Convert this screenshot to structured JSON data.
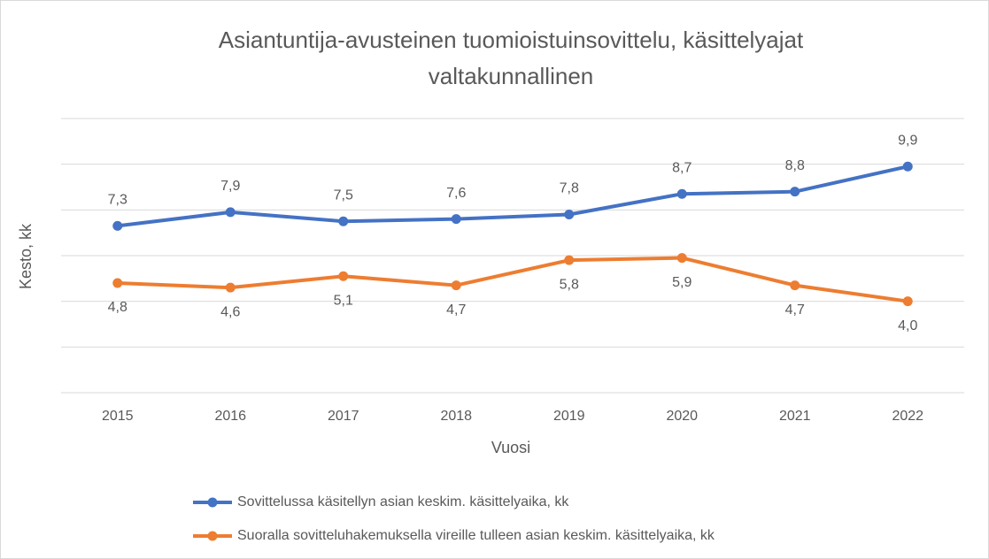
{
  "chart_data": {
    "type": "line",
    "title": [
      "Asiantuntija-avusteinen tuomioistuinsovittelu, käsittelyajat",
      "valtakunnallinen"
    ],
    "x_label": "Vuosi",
    "y_label": "Kesto, kk",
    "categories": [
      "2015",
      "2016",
      "2017",
      "2018",
      "2019",
      "2020",
      "2021",
      "2022"
    ],
    "series": [
      {
        "name": "Sovittelussa käsitellyn asian keskim. käsittelyaika, kk",
        "color": "#4472c4",
        "values": [
          7.3,
          7.9,
          7.5,
          7.6,
          7.8,
          8.7,
          8.8,
          9.9
        ],
        "value_labels": [
          "7,3",
          "7,9",
          "7,5",
          "7,6",
          "7,8",
          "8,7",
          "8,8",
          "9,9"
        ],
        "label_position": "above"
      },
      {
        "name": "Suoralla sovitteluhakemuksella vireille tulleen asian keskim. käsittelyaika, kk",
        "color": "#ed7d31",
        "values": [
          4.8,
          4.6,
          5.1,
          4.7,
          5.8,
          5.9,
          4.7,
          4.0
        ],
        "value_labels": [
          "4,8",
          "4,6",
          "5,1",
          "4,7",
          "5,8",
          "5,9",
          "4,7",
          "4,0"
        ],
        "label_position": "below"
      }
    ],
    "ylim": [
      0,
      12
    ],
    "yticks": [
      0,
      2,
      4,
      6,
      8,
      10,
      12
    ],
    "grid": true,
    "legend": "bottom"
  }
}
